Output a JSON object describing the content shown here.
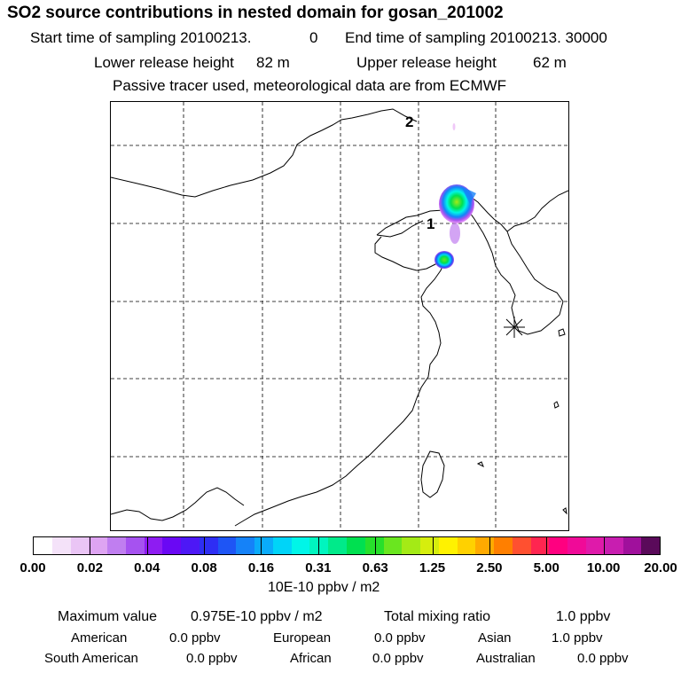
{
  "header": {
    "title": "SO2 source contributions in nested domain for gosan_201002",
    "start_label": "Start time of sampling 20100213.",
    "start_hour": "0",
    "end_label": "End time of sampling 20100213. 30000",
    "lower_label": "Lower release height",
    "lower_value": "82 m",
    "upper_label": "Upper release height",
    "upper_value": "62 m",
    "tracer_note": "Passive tracer used, meteorological data are from ECMWF"
  },
  "map": {
    "labels": [
      "1",
      "2"
    ],
    "receptor_marker": "star-icon"
  },
  "colorbar": {
    "colors": [
      "#ffffff",
      "#f4e2f9",
      "#eac5f5",
      "#dea4f2",
      "#c07ef0",
      "#a652f0",
      "#8e1cf2",
      "#6a08f4",
      "#4d18f6",
      "#2e2ef4",
      "#1e55f5",
      "#1582f8",
      "#0aabfa",
      "#00d4f8",
      "#00f5e8",
      "#00f5bf",
      "#00ea8a",
      "#00e050",
      "#27e02b",
      "#6ae61f",
      "#a4ea16",
      "#d6ee0d",
      "#fff200",
      "#ffd100",
      "#ffaa00",
      "#ff7f00",
      "#ff5030",
      "#ff2550",
      "#ff0080",
      "#f00a98",
      "#df1aaa",
      "#c81eb0",
      "#a0109c",
      "#5a0a5a"
    ],
    "ticks": [
      "0.00",
      "0.02",
      "0.04",
      "0.08",
      "0.16",
      "0.31",
      "0.63",
      "1.25",
      "2.50",
      "5.00",
      "10.00",
      "20.00"
    ],
    "unit": "10E-10 ppbv / m2"
  },
  "summary": {
    "max_label": "Maximum value",
    "max_value": "0.975E-10 ppbv / m2",
    "total_label": "Total mixing ratio",
    "total_value": "1.0 ppbv",
    "regions": [
      {
        "name": "American",
        "value": "0.0 ppbv"
      },
      {
        "name": "European",
        "value": "0.0 ppbv"
      },
      {
        "name": "Asian",
        "value": "1.0 ppbv"
      },
      {
        "name": "South American",
        "value": "0.0 ppbv"
      },
      {
        "name": "African",
        "value": "0.0 ppbv"
      },
      {
        "name": "Australian",
        "value": "0.0 ppbv"
      }
    ]
  }
}
